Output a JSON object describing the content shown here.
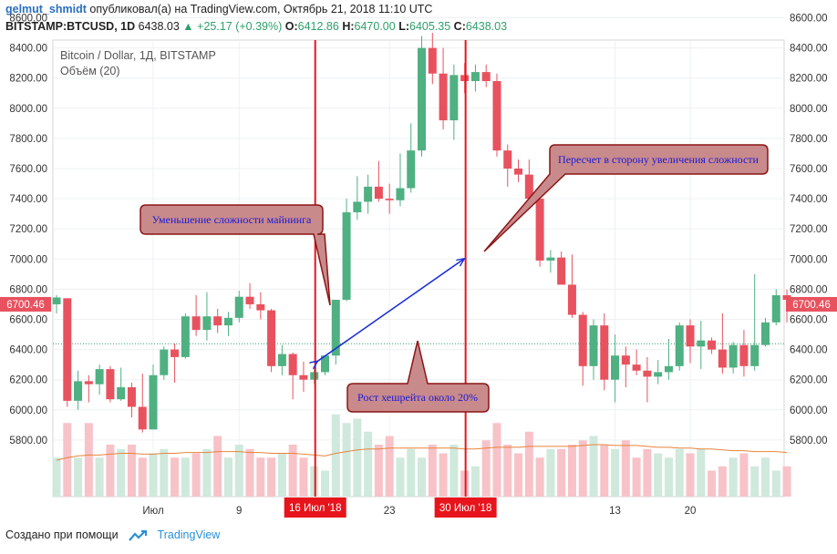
{
  "header": {
    "username": "gelmut_shmidt",
    "published_text": "опубликовал(а) на TradingView.com, Октябрь 21, 2018 11:10 UTC",
    "symbol": "BITSTAMP:BTCUSD, 1D",
    "last": "6438.03",
    "change": "▲ +25.17 (+0.39%)",
    "o_label": "O:",
    "o_val": "6412.86",
    "h_label": "H:",
    "h_val": "6470.00",
    "l_label": "L:",
    "l_val": "6405.35",
    "c_label": "C:",
    "c_val": "6438.03"
  },
  "legend": {
    "title": "Bitcoin / Dollar, 1Д, BITSTAMP",
    "volume": "Объём (20)"
  },
  "price_badge": "6700.46",
  "annotations": {
    "callout1": "Уменьшение сложности майнинга",
    "callout2": "Пересчет в сторону увеличения сложности",
    "callout3": "Рост хешрейта около  20%",
    "marker1": "16 Июл '18",
    "marker2": "30 Июл '18"
  },
  "footer": {
    "made_with": "Создано при помощи",
    "brand": "TradingView"
  },
  "colors": {
    "up": "#4fb082",
    "down": "#e8525f",
    "vol_up": "#cfe9dc",
    "vol_down": "#f7c3c8",
    "marker": "#e8141c",
    "callout_fill": "#c98a8c",
    "callout_stroke": "#8b1515",
    "callout_text": "#1a1ad6",
    "arrow": "#1b2fd9",
    "ma": "#e8833a"
  },
  "chart_data": {
    "type": "candlestick",
    "y_range": [
      5650,
      8650
    ],
    "y_ticks": [
      "5800.00",
      "6000.00",
      "6200.00",
      "6400.00",
      "6600.00",
      "6800.00",
      "7000.00",
      "7200.00",
      "7400.00",
      "7600.00",
      "7800.00",
      "8000.00",
      "8200.00",
      "8400.00",
      "8600.00"
    ],
    "y_tick_values": [
      5800,
      6000,
      6200,
      6400,
      6600,
      6800,
      7000,
      7200,
      7400,
      7600,
      7800,
      8000,
      8200,
      8400,
      8600
    ],
    "x_labels": [
      {
        "label": "Июл",
        "index": 9
      },
      {
        "label": "9",
        "index": 17
      },
      {
        "label": "23",
        "index": 31
      },
      {
        "label": "13",
        "index": 52
      },
      {
        "label": "20",
        "index": 59
      }
    ],
    "markers": [
      {
        "index": 24,
        "label": "16 Июл '18"
      },
      {
        "index": 38,
        "label": "30 Июл '18"
      }
    ],
    "dotted_level": 6438.03,
    "candles": [
      [
        6700,
        6760,
        6640,
        6745
      ],
      [
        6740,
        6730,
        6020,
        6060
      ],
      [
        6060,
        6260,
        6000,
        6190
      ],
      [
        6190,
        6230,
        6050,
        6170
      ],
      [
        6170,
        6300,
        6100,
        6270
      ],
      [
        6270,
        6290,
        6050,
        6070
      ],
      [
        6070,
        6280,
        6060,
        6150
      ],
      [
        6150,
        6180,
        5950,
        6020
      ],
      [
        6020,
        6240,
        5850,
        5870
      ],
      [
        5870,
        6300,
        5880,
        6230
      ],
      [
        6230,
        6420,
        6200,
        6400
      ],
      [
        6400,
        6440,
        6180,
        6350
      ],
      [
        6350,
        6640,
        6340,
        6620
      ],
      [
        6620,
        6760,
        6490,
        6530
      ],
      [
        6530,
        6780,
        6460,
        6620
      ],
      [
        6620,
        6670,
        6510,
        6560
      ],
      [
        6560,
        6650,
        6490,
        6610
      ],
      [
        6610,
        6790,
        6580,
        6750
      ],
      [
        6750,
        6840,
        6670,
        6700
      ],
      [
        6700,
        6780,
        6600,
        6660
      ],
      [
        6660,
        6670,
        6250,
        6290
      ],
      [
        6290,
        6430,
        6230,
        6370
      ],
      [
        6370,
        6380,
        6070,
        6230
      ],
      [
        6230,
        6320,
        6120,
        6200
      ],
      [
        6200,
        6290,
        6170,
        6250
      ],
      [
        6250,
        6360,
        6230,
        6360
      ],
      [
        6360,
        6730,
        6300,
        6730
      ],
      [
        6730,
        7400,
        6720,
        7310
      ],
      [
        7310,
        7550,
        7260,
        7380
      ],
      [
        7380,
        7560,
        7300,
        7480
      ],
      [
        7480,
        7650,
        7380,
        7400
      ],
      [
        7400,
        7500,
        7300,
        7390
      ],
      [
        7390,
        7700,
        7350,
        7470
      ],
      [
        7470,
        7900,
        7440,
        7720
      ],
      [
        7720,
        8480,
        7680,
        8400
      ],
      [
        8400,
        8500,
        8160,
        8230
      ],
      [
        8230,
        8400,
        7860,
        7920
      ],
      [
        7920,
        8290,
        7790,
        8220
      ],
      [
        8220,
        8300,
        8100,
        8180
      ],
      [
        8180,
        8290,
        8110,
        8240
      ],
      [
        8240,
        8290,
        8140,
        8180
      ],
      [
        8180,
        8230,
        7680,
        7720
      ],
      [
        7720,
        7760,
        7480,
        7600
      ],
      [
        7600,
        7660,
        7510,
        7560
      ],
      [
        7560,
        7660,
        7330,
        7400
      ],
      [
        7400,
        7450,
        6950,
        6990
      ],
      [
        6990,
        7060,
        6910,
        7010
      ],
      [
        7010,
        7050,
        6850,
        6830
      ],
      [
        6830,
        7030,
        6610,
        6630
      ],
      [
        6630,
        6650,
        6160,
        6290
      ],
      [
        6290,
        6600,
        6200,
        6560
      ],
      [
        6560,
        6640,
        6130,
        6200
      ],
      [
        6200,
        6500,
        6050,
        6360
      ],
      [
        6360,
        6420,
        6150,
        6300
      ],
      [
        6300,
        6400,
        6230,
        6260
      ],
      [
        6260,
        6350,
        6050,
        6220
      ],
      [
        6220,
        6330,
        6170,
        6250
      ],
      [
        6250,
        6470,
        6200,
        6290
      ],
      [
        6290,
        6580,
        6260,
        6560
      ],
      [
        6560,
        6600,
        6310,
        6420
      ],
      [
        6420,
        6590,
        6270,
        6460
      ],
      [
        6460,
        6480,
        6370,
        6400
      ],
      [
        6400,
        6640,
        6240,
        6280
      ],
      [
        6280,
        6450,
        6240,
        6430
      ],
      [
        6430,
        6530,
        6220,
        6290
      ],
      [
        6290,
        6900,
        6260,
        6430
      ],
      [
        6430,
        6610,
        6420,
        6580
      ],
      [
        6580,
        6800,
        6560,
        6760
      ],
      [
        6760,
        6800,
        6580,
        6730
      ]
    ],
    "volumes": [
      0.45,
      0.85,
      0.45,
      0.85,
      0.45,
      0.6,
      0.55,
      0.6,
      0.45,
      0.5,
      0.55,
      0.45,
      0.45,
      0.5,
      0.55,
      0.7,
      0.45,
      0.6,
      0.55,
      0.45,
      0.45,
      0.5,
      0.6,
      0.45,
      0.35,
      0.3,
      0.95,
      0.85,
      0.9,
      0.75,
      0.6,
      0.7,
      0.45,
      0.55,
      0.45,
      0.6,
      0.5,
      0.6,
      0.3,
      0.35,
      0.65,
      0.85,
      0.6,
      0.5,
      0.75,
      0.45,
      0.55,
      0.55,
      0.6,
      0.65,
      0.7,
      0.6,
      0.55,
      0.65,
      0.45,
      0.55,
      0.5,
      0.45,
      0.55,
      0.5,
      0.55,
      0.3,
      0.35,
      0.45,
      0.5,
      0.35,
      0.45,
      0.3,
      0.35
    ],
    "volume_ma": [
      0.42,
      0.45,
      0.47,
      0.48,
      0.48,
      0.49,
      0.5,
      0.5,
      0.49,
      0.49,
      0.5,
      0.5,
      0.51,
      0.51,
      0.51,
      0.52,
      0.52,
      0.52,
      0.51,
      0.51,
      0.5,
      0.5,
      0.5,
      0.49,
      0.48,
      0.47,
      0.5,
      0.52,
      0.54,
      0.55,
      0.55,
      0.56,
      0.56,
      0.56,
      0.56,
      0.56,
      0.56,
      0.56,
      0.55,
      0.55,
      0.56,
      0.57,
      0.57,
      0.57,
      0.58,
      0.58,
      0.58,
      0.58,
      0.58,
      0.59,
      0.6,
      0.6,
      0.59,
      0.59,
      0.59,
      0.58,
      0.57,
      0.57,
      0.56,
      0.56,
      0.55,
      0.55,
      0.54,
      0.53,
      0.53,
      0.52,
      0.52,
      0.52,
      0.51
    ]
  }
}
